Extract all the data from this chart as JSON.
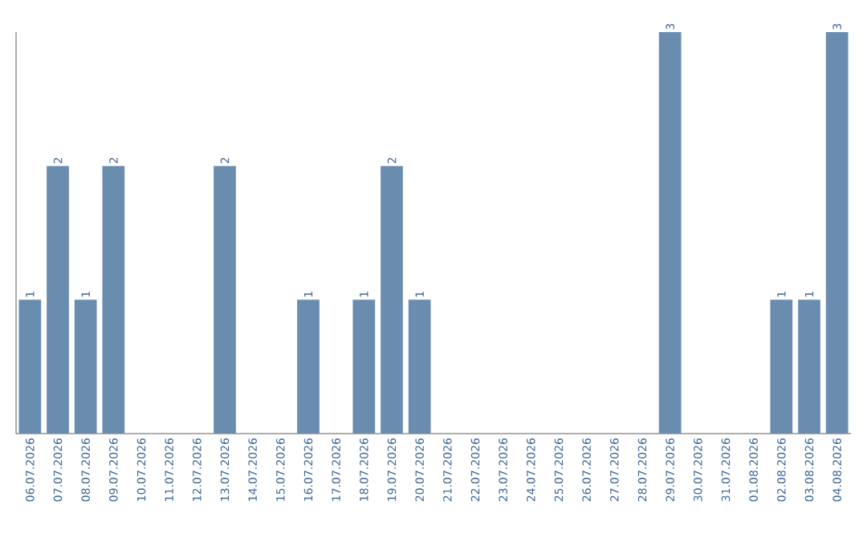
{
  "chart_data": {
    "type": "bar",
    "categories": [
      "06.07.2026",
      "07.07.2026",
      "08.07.2026",
      "09.07.2026",
      "10.07.2026",
      "11.07.2026",
      "12.07.2026",
      "13.07.2026",
      "14.07.2026",
      "15.07.2026",
      "16.07.2026",
      "17.07.2026",
      "18.07.2026",
      "19.07.2026",
      "20.07.2026",
      "21.07.2026",
      "22.07.2026",
      "23.07.2026",
      "24.07.2026",
      "25.07.2026",
      "26.07.2026",
      "27.07.2026",
      "28.07.2026",
      "29.07.2026",
      "30.07.2026",
      "31.07.2026",
      "01.08.2026",
      "02.08.2026",
      "03.08.2026",
      "04.08.2026"
    ],
    "values": [
      1,
      2,
      1,
      2,
      0,
      0,
      0,
      2,
      0,
      0,
      1,
      0,
      1,
      2,
      1,
      0,
      0,
      0,
      0,
      0,
      0,
      0,
      0,
      3,
      0,
      0,
      0,
      1,
      1,
      3
    ],
    "value_labels": [
      "1",
      "2",
      "1",
      "2",
      null,
      null,
      null,
      "2",
      null,
      null,
      "1",
      null,
      "1",
      "2",
      "1",
      null,
      null,
      null,
      null,
      null,
      null,
      null,
      null,
      "3",
      null,
      null,
      null,
      "1",
      "1",
      "3"
    ],
    "color": "#6a8caf",
    "ylim": [
      0,
      3
    ],
    "tick_labels": "x"
  }
}
